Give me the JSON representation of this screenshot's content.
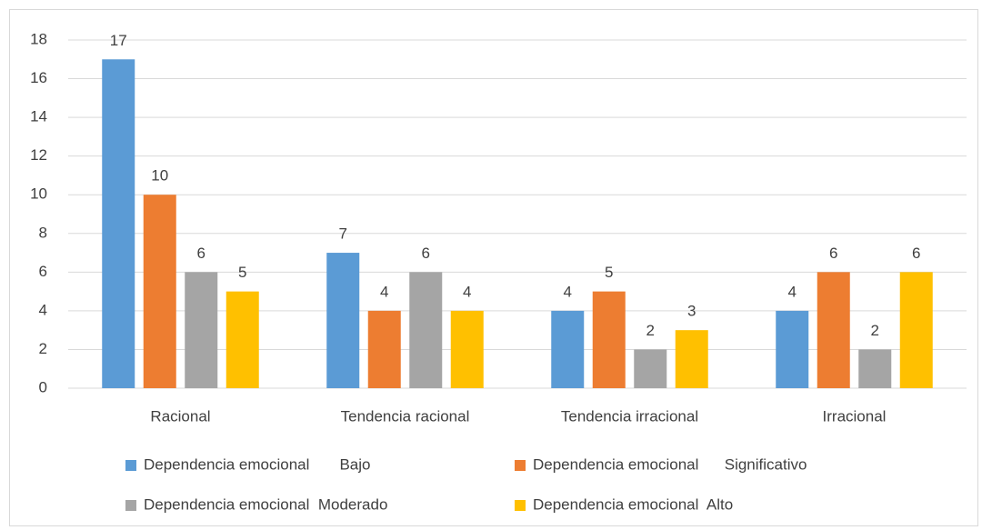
{
  "chart_data": {
    "type": "bar",
    "categories": [
      "Racional",
      "Tendencia racional",
      "Tendencia irracional",
      "Irracional"
    ],
    "series": [
      {
        "name": "Dependencia emocional       Bajo",
        "color": "#5b9bd5",
        "values": [
          17,
          7,
          4,
          4
        ]
      },
      {
        "name": "Dependencia emocional      Significativo",
        "color": "#ed7d31",
        "values": [
          10,
          4,
          5,
          6
        ]
      },
      {
        "name": "Dependencia emocional  Moderado",
        "color": "#a5a5a5",
        "values": [
          6,
          6,
          2,
          2
        ]
      },
      {
        "name": "Dependencia emocional  Alto",
        "color": "#ffc000",
        "values": [
          5,
          4,
          3,
          6
        ]
      }
    ],
    "ylim": [
      0,
      18
    ],
    "yticks": [
      0,
      2,
      4,
      6,
      8,
      10,
      12,
      14,
      16,
      18
    ],
    "grid": true,
    "legend": "bottom"
  }
}
